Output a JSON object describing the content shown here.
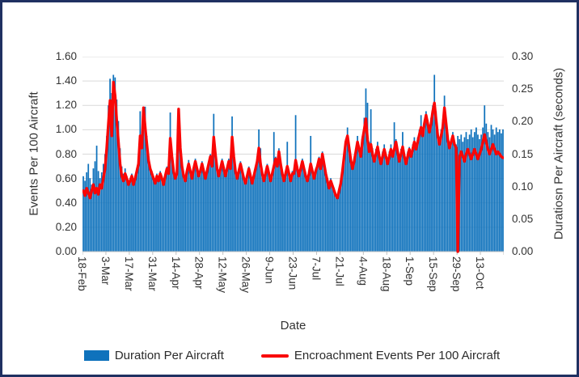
{
  "window": {
    "background": "#FFFFFF",
    "border_color": "#1F3061"
  },
  "chart_data": {
    "type": "bar",
    "subtype": "bar+line combo, dual axis",
    "title": "",
    "x_axis": {
      "title": "Date",
      "tick_labels": [
        "18-Feb",
        "3-Mar",
        "17-Mar",
        "31-Mar",
        "14-Apr",
        "28-Apr",
        "12-May",
        "26-May",
        "9-Jun",
        "23-Jun",
        "7-Jul",
        "21-Jul",
        "4-Aug",
        "18-Aug",
        "1-Sep",
        "15-Sep",
        "29-Sep",
        "13-Oct"
      ],
      "tick_interval_days": 14,
      "num_points": 252
    },
    "left_axis": {
      "title": "Events Per 100 Aircraft",
      "min": 0,
      "max": 1.6,
      "step": 0.2
    },
    "right_axis": {
      "title": "Duratiosn Per Aircraft (seconds)",
      "min": 0,
      "max": 0.3,
      "step": 0.05
    },
    "grid": true,
    "gridline_color": "#D9D9D9",
    "axis_line_color": "#BFBFBF",
    "legend_position": "bottom",
    "series": [
      {
        "name": "Duration Per Aircraft",
        "type": "bar",
        "axis": "right",
        "color": "#0F72BC",
        "values": [
          0.116,
          0.109,
          0.122,
          0.135,
          0.113,
          0.103,
          0.128,
          0.139,
          0.163,
          0.124,
          0.113,
          0.122,
          0.135,
          0.15,
          0.178,
          0.225,
          0.266,
          0.244,
          0.272,
          0.268,
          0.234,
          0.201,
          0.159,
          0.131,
          0.12,
          0.128,
          0.116,
          0.109,
          0.113,
          0.12,
          0.109,
          0.116,
          0.128,
          0.141,
          0.216,
          0.169,
          0.206,
          0.223,
          0.178,
          0.146,
          0.131,
          0.124,
          0.116,
          0.109,
          0.12,
          0.113,
          0.124,
          0.116,
          0.109,
          0.12,
          0.131,
          0.124,
          0.214,
          0.154,
          0.128,
          0.116,
          0.128,
          0.221,
          0.165,
          0.135,
          0.12,
          0.113,
          0.128,
          0.141,
          0.128,
          0.116,
          0.131,
          0.143,
          0.131,
          0.12,
          0.128,
          0.139,
          0.128,
          0.116,
          0.128,
          0.139,
          0.15,
          0.135,
          0.212,
          0.154,
          0.131,
          0.12,
          0.131,
          0.143,
          0.131,
          0.12,
          0.131,
          0.143,
          0.131,
          0.208,
          0.15,
          0.128,
          0.116,
          0.128,
          0.139,
          0.128,
          0.116,
          0.109,
          0.12,
          0.131,
          0.12,
          0.109,
          0.12,
          0.131,
          0.143,
          0.188,
          0.159,
          0.124,
          0.113,
          0.124,
          0.135,
          0.124,
          0.113,
          0.124,
          0.184,
          0.146,
          0.135,
          0.159,
          0.139,
          0.124,
          0.113,
          0.124,
          0.169,
          0.124,
          0.113,
          0.124,
          0.124,
          0.21,
          0.131,
          0.12,
          0.131,
          0.143,
          0.131,
          0.12,
          0.113,
          0.124,
          0.178,
          0.128,
          0.116,
          0.128,
          0.135,
          0.146,
          0.131,
          0.154,
          0.139,
          0.124,
          0.113,
          0.101,
          0.113,
          0.105,
          0.098,
          0.09,
          0.086,
          0.098,
          0.109,
          0.128,
          0.15,
          0.173,
          0.191,
          0.165,
          0.146,
          0.131,
          0.143,
          0.159,
          0.178,
          0.161,
          0.15,
          0.178,
          0.206,
          0.251,
          0.229,
          0.169,
          0.219,
          0.159,
          0.146,
          0.158,
          0.169,
          0.154,
          0.143,
          0.154,
          0.165,
          0.15,
          0.143,
          0.154,
          0.165,
          0.154,
          0.199,
          0.173,
          0.158,
          0.146,
          0.158,
          0.184,
          0.15,
          0.143,
          0.154,
          0.161,
          0.154,
          0.165,
          0.176,
          0.165,
          0.176,
          0.188,
          0.21,
          0.184,
          0.203,
          0.216,
          0.203,
          0.191,
          0.206,
          0.225,
          0.272,
          0.216,
          0.188,
          0.173,
          0.188,
          0.203,
          0.24,
          0.206,
          0.178,
          0.165,
          0.173,
          0.184,
          0.169,
          0.165,
          0.178,
          0.173,
          0.18,
          0.169,
          0.176,
          0.184,
          0.173,
          0.18,
          0.188,
          0.176,
          0.184,
          0.191,
          0.18,
          0.173,
          0.18,
          0.191,
          0.225,
          0.197,
          0.184,
          0.176,
          0.195,
          0.188,
          0.18,
          0.191,
          0.184,
          0.188,
          0.182,
          0.188
        ]
      },
      {
        "name": "Encroachment Events Per 100 Aircraft",
        "type": "line",
        "axis": "left",
        "color": "#F90606",
        "values": [
          0.5,
          0.46,
          0.52,
          0.48,
          0.44,
          0.5,
          0.55,
          0.48,
          0.52,
          0.47,
          0.55,
          0.52,
          0.6,
          0.68,
          0.85,
          1.05,
          1.24,
          0.95,
          1.39,
          1.28,
          1.07,
          0.9,
          0.72,
          0.62,
          0.58,
          0.64,
          0.6,
          0.55,
          0.58,
          0.62,
          0.55,
          0.6,
          0.66,
          0.72,
          0.95,
          0.85,
          1.18,
          1.02,
          0.88,
          0.75,
          0.68,
          0.64,
          0.6,
          0.56,
          0.62,
          0.58,
          0.64,
          0.6,
          0.55,
          0.62,
          0.68,
          0.64,
          0.93,
          0.78,
          0.66,
          0.6,
          0.64,
          1.17,
          0.85,
          0.7,
          0.62,
          0.58,
          0.66,
          0.72,
          0.66,
          0.6,
          0.68,
          0.74,
          0.68,
          0.62,
          0.66,
          0.72,
          0.66,
          0.6,
          0.66,
          0.72,
          0.78,
          0.7,
          0.94,
          0.8,
          0.68,
          0.62,
          0.68,
          0.74,
          0.68,
          0.62,
          0.68,
          0.74,
          0.68,
          0.94,
          0.78,
          0.66,
          0.6,
          0.66,
          0.72,
          0.66,
          0.6,
          0.56,
          0.62,
          0.68,
          0.62,
          0.56,
          0.62,
          0.68,
          0.74,
          0.85,
          0.72,
          0.64,
          0.58,
          0.64,
          0.7,
          0.64,
          0.58,
          0.64,
          0.7,
          0.76,
          0.7,
          0.82,
          0.72,
          0.64,
          0.58,
          0.64,
          0.7,
          0.64,
          0.58,
          0.64,
          0.64,
          0.75,
          0.68,
          0.62,
          0.68,
          0.74,
          0.68,
          0.62,
          0.58,
          0.64,
          0.72,
          0.66,
          0.6,
          0.66,
          0.7,
          0.76,
          0.68,
          0.8,
          0.72,
          0.64,
          0.58,
          0.52,
          0.58,
          0.54,
          0.5,
          0.46,
          0.44,
          0.5,
          0.56,
          0.66,
          0.78,
          0.9,
          0.95,
          0.85,
          0.75,
          0.68,
          0.74,
          0.82,
          0.9,
          0.84,
          0.78,
          0.92,
          1.0,
          1.09,
          0.92,
          0.82,
          0.88,
          0.8,
          0.74,
          0.8,
          0.86,
          0.78,
          0.72,
          0.78,
          0.84,
          0.78,
          0.72,
          0.78,
          0.84,
          0.78,
          0.84,
          0.9,
          0.82,
          0.74,
          0.8,
          0.86,
          0.78,
          0.72,
          0.78,
          0.84,
          0.78,
          0.84,
          0.9,
          0.84,
          0.9,
          0.96,
          1.02,
          0.95,
          1.05,
          1.12,
          1.05,
          0.98,
          1.05,
          1.15,
          1.22,
          1.08,
          0.95,
          0.88,
          0.95,
          1.02,
          1.18,
          1.05,
          0.92,
          0.85,
          0.9,
          0.95,
          0.88,
          0.85,
          0.0,
          0.78,
          0.82,
          0.78,
          0.74,
          0.8,
          0.84,
          0.8,
          0.76,
          0.8,
          0.84,
          0.8,
          0.76,
          0.8,
          0.84,
          0.9,
          0.96,
          0.9,
          0.84,
          0.8,
          0.84,
          0.88,
          0.84,
          0.8,
          0.82,
          0.8,
          0.78,
          0.77
        ]
      }
    ]
  },
  "legend": {
    "items": [
      {
        "label": "Duration Per Aircraft",
        "swatch": "bar",
        "color": "#0F72BC"
      },
      {
        "label": "Encroachment Events Per 100 Aircraft",
        "swatch": "line",
        "color": "#F90606"
      }
    ]
  }
}
